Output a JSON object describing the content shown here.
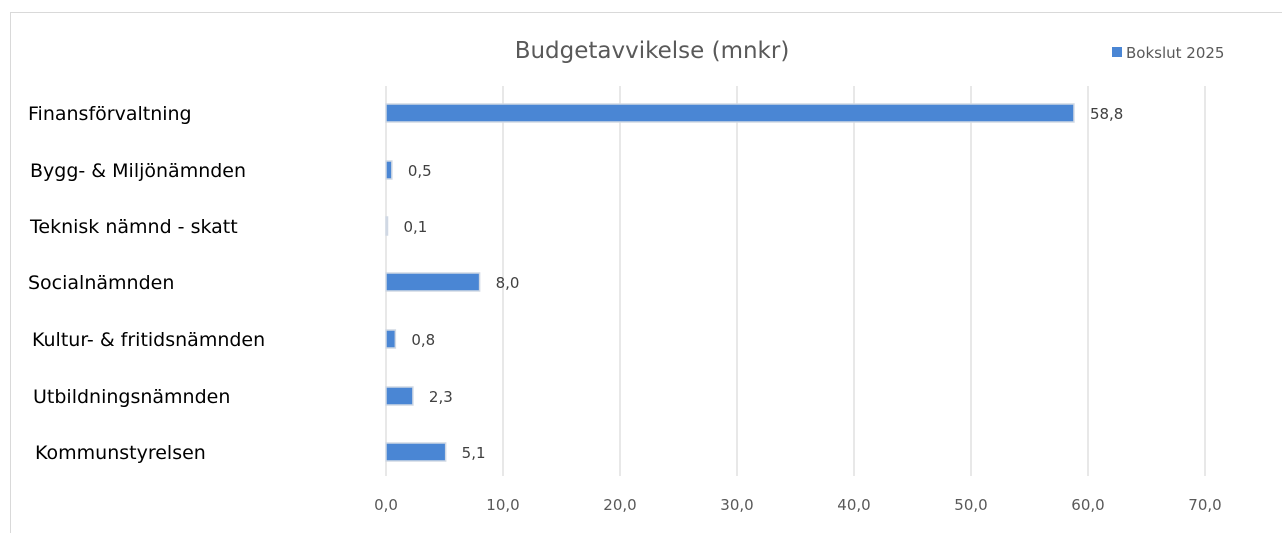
{
  "chart_data": {
    "type": "bar",
    "orientation": "horizontal",
    "title": "Budgetavvikelse (mnkr)",
    "categories": [
      "Finansförvaltning",
      "Bygg- & Miljönämnden",
      "Teknisk nämnd - skatt",
      "Socialnämnden",
      "Kultur- & fritidsnämnden",
      "Utbildningsnämnden",
      "Kommunstyrelsen"
    ],
    "series": [
      {
        "name": "Bokslut 2025",
        "values": [
          58.8,
          0.5,
          0.1,
          8.0,
          0.8,
          2.3,
          5.1
        ],
        "data_labels": [
          "58,8",
          "0,5",
          "0,1",
          "8,0",
          "0,8",
          "2,3",
          "5,1"
        ],
        "color": "#4a86d4"
      }
    ],
    "xlim": [
      0,
      70
    ],
    "tick_labels": [
      "0,0",
      "10,0",
      "20,0",
      "30,0",
      "40,0",
      "50,0",
      "60,0",
      "70,0"
    ],
    "grid": true,
    "legend": "top-right",
    "gridline_color": "#d9d9d9"
  }
}
